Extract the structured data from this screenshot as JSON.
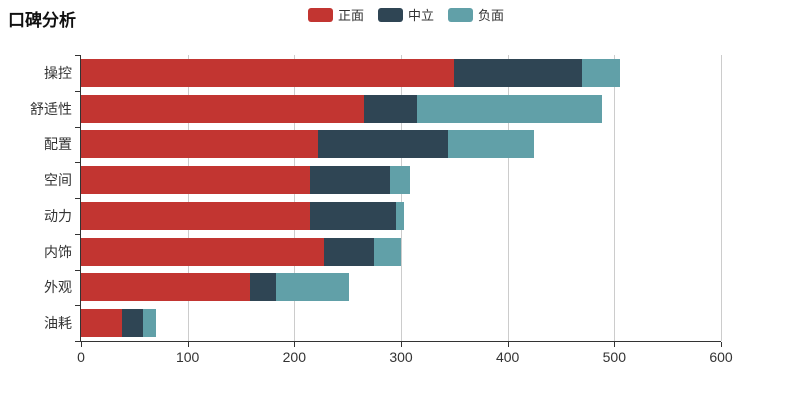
{
  "chart_data": {
    "type": "bar",
    "orientation": "horizontal",
    "stacked": true,
    "title": "口碑分析",
    "categories": [
      "操控",
      "舒适性",
      "配置",
      "空间",
      "动力",
      "内饰",
      "外观",
      "油耗"
    ],
    "series": [
      {
        "name": "正面",
        "color": "#c23531",
        "values": [
          350,
          265,
          222,
          215,
          215,
          228,
          158,
          38
        ]
      },
      {
        "name": "中立",
        "color": "#2f4554",
        "values": [
          120,
          50,
          122,
          75,
          80,
          47,
          25,
          20
        ]
      },
      {
        "name": "负面",
        "color": "#61a0a8",
        "values": [
          35,
          173,
          81,
          18,
          8,
          25,
          68,
          12
        ]
      }
    ],
    "xlim": [
      0,
      600
    ],
    "x_ticks": [
      0,
      100,
      200,
      300,
      400,
      500,
      600
    ],
    "grid": true,
    "legend_position": "top-center",
    "axis_color": "#333333",
    "grid_color": "#cccccc",
    "background_color": "#ffffff"
  }
}
